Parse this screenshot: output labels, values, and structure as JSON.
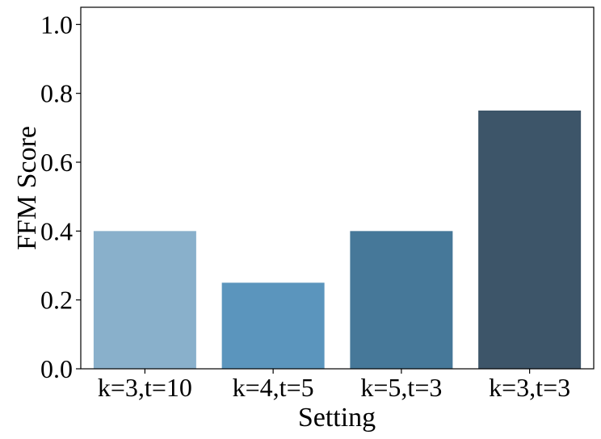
{
  "chart_data": {
    "type": "bar",
    "title": "",
    "xlabel": "Setting",
    "ylabel": "FFM Score",
    "categories": [
      "k=3,t=10",
      "k=4,t=5",
      "k=5,t=3",
      "k=3,t=3"
    ],
    "values": [
      0.4,
      0.25,
      0.4,
      0.75
    ],
    "colors": [
      "#89b0cb",
      "#5b95bd",
      "#467899",
      "#3d5569"
    ],
    "ylim": [
      0,
      1.05
    ],
    "yticks": [
      0.0,
      0.2,
      0.4,
      0.6,
      0.8,
      1.0
    ],
    "ytick_labels": [
      "0.0",
      "0.2",
      "0.4",
      "0.6",
      "0.8",
      "1.0"
    ],
    "grid": false,
    "legend": "none"
  }
}
